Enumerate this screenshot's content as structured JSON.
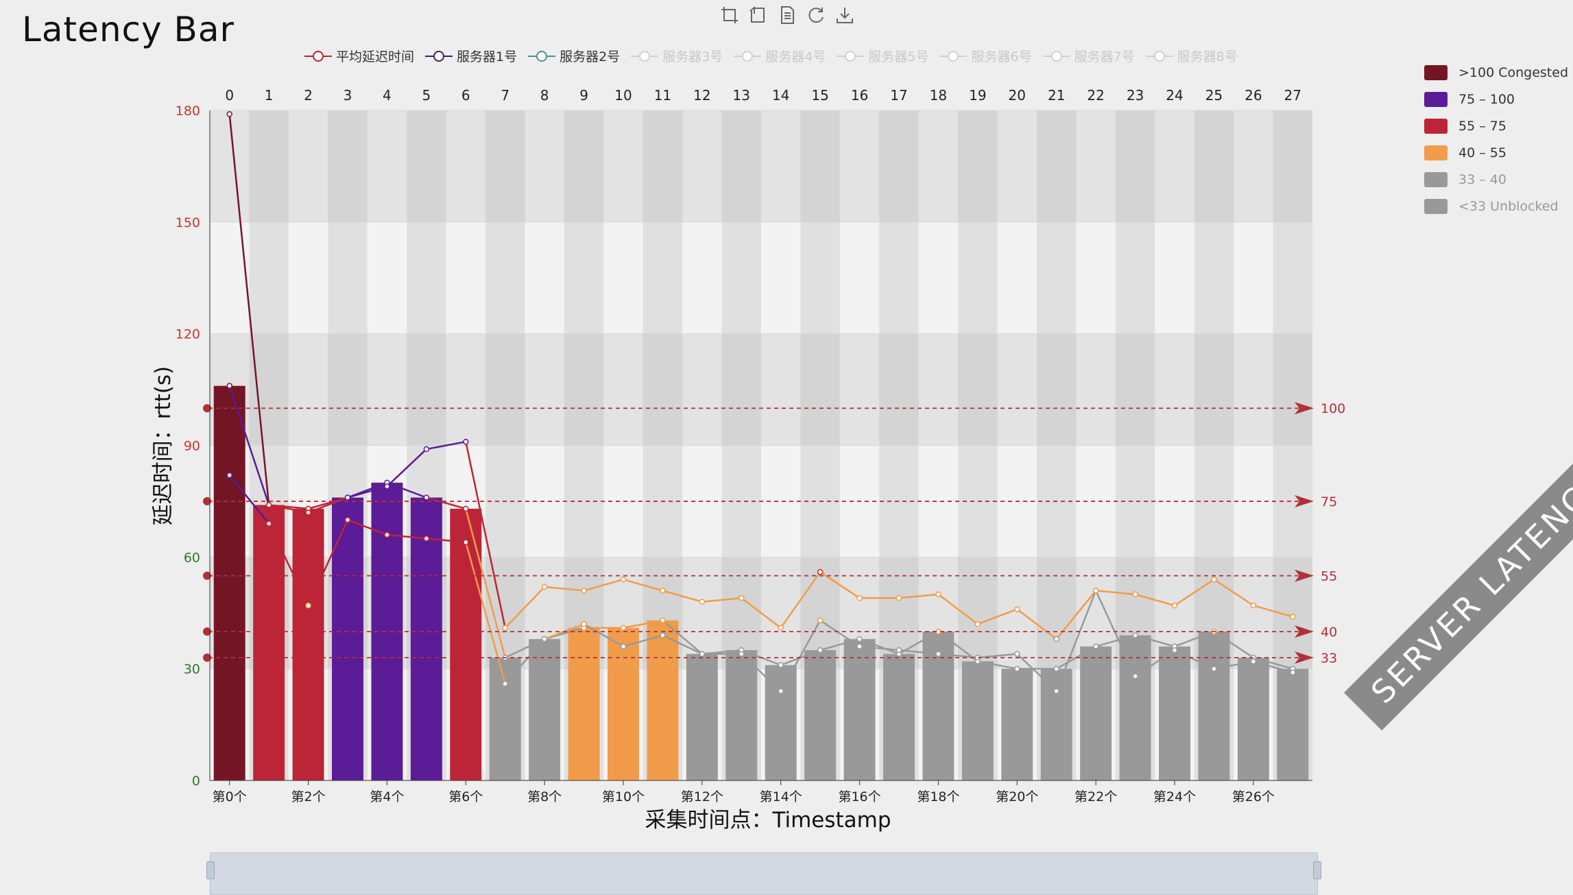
{
  "title": "Latency Bar",
  "toolbox": {
    "icons": [
      "zoom-select-icon",
      "zoom-reset-icon",
      "data-view-icon",
      "restore-icon",
      "save-image-icon"
    ]
  },
  "legend_top": [
    {
      "name": "平均延迟时间",
      "color": "#b8232e",
      "active": true
    },
    {
      "name": "服务器1号",
      "color": "#3a1f66",
      "active": true
    },
    {
      "name": "服务器2号",
      "color": "#4f8f8c",
      "active": true
    },
    {
      "name": "服务器3号",
      "color": "#cccccc",
      "active": false
    },
    {
      "name": "服务器4号",
      "color": "#cccccc",
      "active": false
    },
    {
      "name": "服务器5号",
      "color": "#cccccc",
      "active": false
    },
    {
      "name": "服务器6号",
      "color": "#cccccc",
      "active": false
    },
    {
      "name": "服务器7号",
      "color": "#cccccc",
      "active": false
    },
    {
      "name": "服务器8号",
      "color": "#cccccc",
      "active": false
    }
  ],
  "legend_right": [
    {
      "label": ">100 Congested",
      "color": "#741525",
      "dim": false
    },
    {
      "label": "75 – 100",
      "color": "#5c1b97",
      "dim": false
    },
    {
      "label": "55 – 75",
      "color": "#bc2537",
      "dim": false
    },
    {
      "label": "40 – 55",
      "color": "#f09c4a",
      "dim": false
    },
    {
      "label": "33 – 40",
      "color": "#999999",
      "dim": true
    },
    {
      "label": "<33 Unblocked",
      "color": "#999999",
      "dim": true
    }
  ],
  "ribbon_text": "SERVER LATENCY BAR",
  "chart_data": {
    "type": "bar",
    "ylabel": "延迟时间：rtt(s)",
    "xlabel": "采集时间点：Timestamp",
    "ylim": [
      0,
      180
    ],
    "yticks": [
      0,
      30,
      60,
      90,
      120,
      150,
      180
    ],
    "ytick_colors": [
      "#2a7a2a",
      "#2a7a2a",
      "#2a7a2a",
      "#cc3333",
      "#cc3333",
      "#cc3333",
      "#cc3333"
    ],
    "top_ticks": [
      "0",
      "1",
      "2",
      "3",
      "4",
      "5",
      "6",
      "7",
      "8",
      "9",
      "10",
      "11",
      "12",
      "13",
      "14",
      "15",
      "16",
      "17",
      "18",
      "19",
      "20",
      "21",
      "22",
      "23",
      "24",
      "25",
      "26",
      "27"
    ],
    "bottom_ticks": [
      "第0个",
      "第2个",
      "第4个",
      "第6个",
      "第8个",
      "第10个",
      "第12个",
      "第14个",
      "第16个",
      "第18个",
      "第20个",
      "第22个",
      "第24个",
      "第26个"
    ],
    "bars": [
      106,
      74,
      73,
      76,
      80,
      76,
      73,
      33,
      38,
      41,
      41,
      43,
      34,
      35,
      31,
      35,
      38,
      34,
      40,
      32,
      30,
      30,
      36,
      39,
      36,
      40,
      33,
      30
    ],
    "bar_colors": [
      "#741525",
      "#bc2537",
      "#bc2537",
      "#5c1b97",
      "#5c1b97",
      "#5c1b97",
      "#bc2537",
      "#999999",
      "#999999",
      "#f09c4a",
      "#f09c4a",
      "#f09c4a",
      "#999999",
      "#999999",
      "#999999",
      "#999999",
      "#999999",
      "#999999",
      "#999999",
      "#999999",
      "#999999",
      "#999999",
      "#999999",
      "#999999",
      "#999999",
      "#999999",
      "#999999",
      "#999999"
    ],
    "series": [
      {
        "name": "平均延迟时间",
        "values": [
          106,
          74,
          73,
          76,
          80,
          76,
          73,
          33,
          38,
          41,
          41,
          43,
          34,
          35,
          31,
          35,
          38,
          34,
          40,
          32,
          30,
          30,
          36,
          39,
          36,
          40,
          33,
          30
        ]
      },
      {
        "name": "服务器1号",
        "values": [
          179,
          74,
          72,
          76,
          79,
          89,
          91,
          41,
          52,
          51,
          54,
          51,
          48,
          49,
          41,
          56,
          49,
          49,
          50,
          42,
          46,
          38,
          51,
          50,
          47,
          54,
          47,
          44
        ]
      },
      {
        "name": "服务器2号",
        "values": [
          82,
          69,
          47,
          70,
          66,
          65,
          64,
          26,
          38,
          42,
          36,
          39,
          34,
          34,
          24,
          43,
          36,
          35,
          34,
          33,
          34,
          24,
          51,
          28,
          35,
          30,
          32,
          29
        ]
      }
    ],
    "markLines": [
      {
        "value": 100,
        "label": "100"
      },
      {
        "value": 75,
        "label": "75"
      },
      {
        "value": 55,
        "label": "55"
      },
      {
        "value": 40,
        "label": "40"
      },
      {
        "value": 33,
        "label": "33"
      }
    ],
    "visualMap": [
      {
        "min": 100,
        "color": "#741525"
      },
      {
        "min": 75,
        "max": 100,
        "color": "#5c1b97"
      },
      {
        "min": 55,
        "max": 75,
        "color": "#bc2537"
      },
      {
        "min": 40,
        "max": 55,
        "color": "#f09c4a"
      },
      {
        "max": 40,
        "color": "#999999"
      }
    ]
  }
}
